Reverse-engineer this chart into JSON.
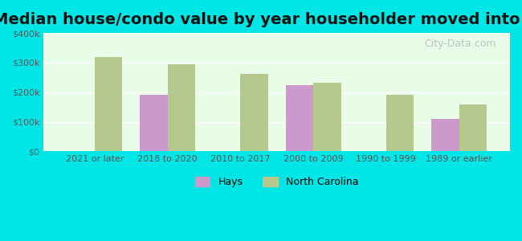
{
  "title": "Median house/condo value by year householder moved into unit",
  "categories": [
    "2021 or later",
    "2018 to 2020",
    "2010 to 2017",
    "2000 to 2009",
    "1990 to 1999",
    "1989 or earlier"
  ],
  "hays_values": [
    null,
    190000,
    null,
    225000,
    null,
    110000
  ],
  "nc_values": [
    320000,
    295000,
    262000,
    232000,
    192000,
    158000
  ],
  "hays_color": "#cc99cc",
  "nc_color": "#b5c98e",
  "background_color": "#e8fce8",
  "outer_background": "#00e5e5",
  "ylim": [
    0,
    400000
  ],
  "yticks": [
    0,
    100000,
    200000,
    300000,
    400000
  ],
  "ytick_labels": [
    "$0",
    "$100k",
    "$200k",
    "$300k",
    "$400k"
  ],
  "watermark": "City-Data.com",
  "legend_hays": "Hays",
  "legend_nc": "North Carolina",
  "title_fontsize": 14,
  "bar_width": 0.38
}
